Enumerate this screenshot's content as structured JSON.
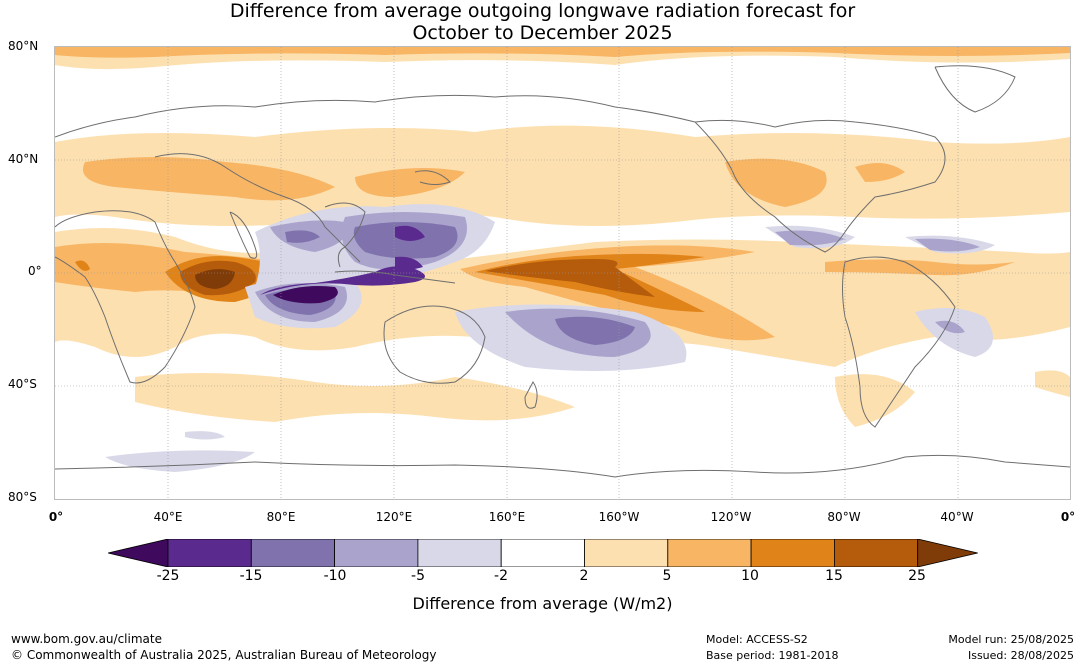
{
  "title_line1": "Difference from average outgoing longwave radiation forecast for",
  "title_line2": "October to December 2025",
  "lat_labels": [
    "80°N",
    "40°N",
    "0°",
    "40°S",
    "80°S"
  ],
  "lon_labels": [
    "0°",
    "40°E",
    "80°E",
    "120°E",
    "160°E",
    "160°W",
    "120°W",
    "80°W",
    "40°W",
    "0°"
  ],
  "colorbar": {
    "ticks": [
      "-25",
      "-15",
      "-10",
      "-5",
      "-2",
      "2",
      "5",
      "10",
      "15",
      "25"
    ],
    "colors": [
      "#3f0a5e",
      "#5a2a8e",
      "#8073ad",
      "#aaa4cc",
      "#d8d8e9",
      "#ffffff",
      "#fde0b0",
      "#f8b564",
      "#e08419",
      "#b45b0c",
      "#7f3b08"
    ],
    "label": "Difference from average (W/m2)"
  },
  "footer": {
    "url": "www.bom.gov.au/climate",
    "copyright": "© Commonwealth of Australia 2025, Australian Bureau of Meteorology",
    "model": "Model: ACCESS-S2",
    "base_period": "Base period: 1981-2018",
    "model_run": "Model run: 25/08/2025",
    "issued": "Issued: 28/08/2025"
  }
}
